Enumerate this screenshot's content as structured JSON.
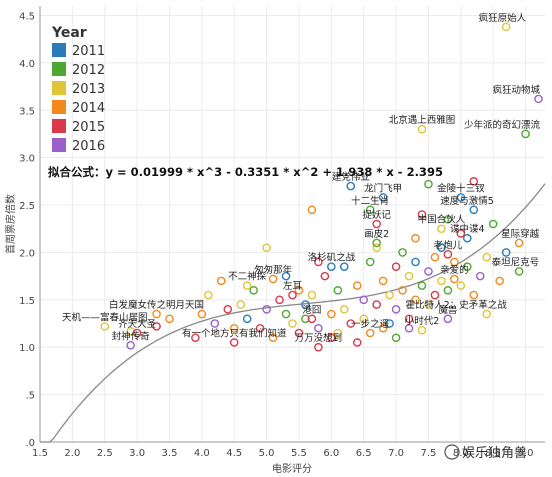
{
  "chart_data": {
    "type": "scatter",
    "xlabel": "电影评分",
    "ylabel": "首周票房倍数",
    "xlim": [
      1.5,
      9.3
    ],
    "ylim": [
      0,
      4.6
    ],
    "x_ticks": [
      "1.5",
      "2.0",
      "2.5",
      "3.0",
      "3.5",
      "4.0",
      "4.5",
      "5.0",
      "5.5",
      "6.0",
      "6.5",
      "7.0",
      "7.5",
      "8.0",
      "8.5",
      "9.0"
    ],
    "y_ticks": [
      ".0",
      ".5",
      "1.0",
      "1.5",
      "2.0",
      "2.5",
      "3.0",
      "3.5",
      "4.0",
      "4.5"
    ],
    "legend": {
      "title": "Year",
      "position": "top-left",
      "items": [
        {
          "label": "2011",
          "color": "#2b7bba"
        },
        {
          "label": "2012",
          "color": "#4ea733"
        },
        {
          "label": "2013",
          "color": "#e0c53a"
        },
        {
          "label": "2014",
          "color": "#f08a1f"
        },
        {
          "label": "2015",
          "color": "#d8394b"
        },
        {
          "label": "2016",
          "color": "#9a5fc8"
        }
      ]
    },
    "formula_text": "拟合公式：y = 0.01999 * x^3 - 0.3351 * x^2 + 1.938 * x - 2.395",
    "fit": {
      "a3": 0.01999,
      "a2": -0.3351,
      "a1": 1.938,
      "a0": -2.395
    },
    "labeled_points": [
      {
        "label": "疯狂原始人",
        "x": 8.7,
        "y": 4.38,
        "year": "2013"
      },
      {
        "label": "疯狂动物城",
        "x": 9.2,
        "y": 3.62,
        "year": "2016"
      },
      {
        "label": "北京遇上西雅图",
        "x": 7.4,
        "y": 3.3,
        "year": "2013"
      },
      {
        "label": "少年派的奇幻漂流",
        "x": 9.0,
        "y": 3.25,
        "year": "2012"
      },
      {
        "label": "建党伟业",
        "x": 6.3,
        "y": 2.7,
        "year": "2011"
      },
      {
        "label": "龙门飞甲",
        "x": 6.8,
        "y": 2.58,
        "year": "2011"
      },
      {
        "label": "金陵十三钗",
        "x": 8.0,
        "y": 2.58,
        "year": "2011"
      },
      {
        "label": "十二生肖",
        "x": 6.6,
        "y": 2.45,
        "year": "2012"
      },
      {
        "label": "速度与激情5",
        "x": 8.2,
        "y": 2.45,
        "year": "2011"
      },
      {
        "label": "捉妖记",
        "x": 6.7,
        "y": 2.3,
        "year": "2015"
      },
      {
        "label": "中国合伙人",
        "x": 7.7,
        "y": 2.25,
        "year": "2013"
      },
      {
        "label": "谍中谍4",
        "x": 8.1,
        "y": 2.15,
        "year": "2011"
      },
      {
        "label": "星际穿越",
        "x": 8.9,
        "y": 2.1,
        "year": "2014"
      },
      {
        "label": "画皮2",
        "x": 6.7,
        "y": 2.1,
        "year": "2012"
      },
      {
        "label": "老炮儿",
        "x": 7.8,
        "y": 1.98,
        "year": "2015"
      },
      {
        "label": "洛杉矶之战",
        "x": 6.0,
        "y": 1.85,
        "year": "2011"
      },
      {
        "label": "泰坦尼克号",
        "x": 8.9,
        "y": 1.8,
        "year": "2012"
      },
      {
        "label": "匆匆那年",
        "x": 5.1,
        "y": 1.72,
        "year": "2014"
      },
      {
        "label": "亲爱的",
        "x": 7.9,
        "y": 1.72,
        "year": "2014"
      },
      {
        "label": "不二神探",
        "x": 4.7,
        "y": 1.65,
        "year": "2013"
      },
      {
        "label": "左耳",
        "x": 5.4,
        "y": 1.55,
        "year": "2015"
      },
      {
        "label": "白发魔女传之明月天国",
        "x": 3.3,
        "y": 1.35,
        "year": "2014"
      },
      {
        "label": "霍比特人2：史矛革之战",
        "x": 8.4,
        "y": 1.35,
        "year": "2013"
      },
      {
        "label": "天机——富春山居图",
        "x": 2.5,
        "y": 1.22,
        "year": "2013"
      },
      {
        "label": "港囧",
        "x": 5.7,
        "y": 1.3,
        "year": "2015"
      },
      {
        "label": "魔兽",
        "x": 7.8,
        "y": 1.3,
        "year": "2016"
      },
      {
        "label": "齐天大圣",
        "x": 3.0,
        "y": 1.15,
        "year": "2015"
      },
      {
        "label": "一步之遥",
        "x": 6.6,
        "y": 1.15,
        "year": "2014"
      },
      {
        "label": "小时代2",
        "x": 7.4,
        "y": 1.18,
        "year": "2013"
      },
      {
        "label": "封神传奇",
        "x": 2.9,
        "y": 1.02,
        "year": "2016"
      },
      {
        "label": "有一个地方只有我们知道",
        "x": 4.5,
        "y": 1.05,
        "year": "2015"
      },
      {
        "label": "万万没想到",
        "x": 5.8,
        "y": 1.0,
        "year": "2015"
      }
    ],
    "points": [
      {
        "x": 2.9,
        "y": 1.17,
        "year": "2013"
      },
      {
        "x": 3.3,
        "y": 1.22,
        "year": "2015"
      },
      {
        "x": 3.5,
        "y": 1.3,
        "year": "2014"
      },
      {
        "x": 3.9,
        "y": 1.1,
        "year": "2015"
      },
      {
        "x": 4.0,
        "y": 1.35,
        "year": "2014"
      },
      {
        "x": 4.1,
        "y": 1.55,
        "year": "2013"
      },
      {
        "x": 4.2,
        "y": 1.25,
        "year": "2016"
      },
      {
        "x": 4.4,
        "y": 1.4,
        "year": "2015"
      },
      {
        "x": 4.5,
        "y": 1.2,
        "year": "2014"
      },
      {
        "x": 4.6,
        "y": 1.45,
        "year": "2013"
      },
      {
        "x": 4.7,
        "y": 1.3,
        "year": "2011"
      },
      {
        "x": 4.8,
        "y": 1.6,
        "year": "2012"
      },
      {
        "x": 4.9,
        "y": 1.2,
        "year": "2015"
      },
      {
        "x": 5.0,
        "y": 2.05,
        "year": "2013"
      },
      {
        "x": 5.0,
        "y": 1.4,
        "year": "2016"
      },
      {
        "x": 5.1,
        "y": 1.1,
        "year": "2014"
      },
      {
        "x": 5.2,
        "y": 1.5,
        "year": "2015"
      },
      {
        "x": 5.3,
        "y": 1.35,
        "year": "2012"
      },
      {
        "x": 5.4,
        "y": 1.25,
        "year": "2013"
      },
      {
        "x": 5.5,
        "y": 1.6,
        "year": "2014"
      },
      {
        "x": 5.5,
        "y": 1.15,
        "year": "2015"
      },
      {
        "x": 5.6,
        "y": 1.45,
        "year": "2011"
      },
      {
        "x": 5.7,
        "y": 2.45,
        "year": "2014"
      },
      {
        "x": 5.7,
        "y": 1.55,
        "year": "2013"
      },
      {
        "x": 5.8,
        "y": 1.2,
        "year": "2016"
      },
      {
        "x": 5.9,
        "y": 1.75,
        "year": "2015"
      },
      {
        "x": 6.0,
        "y": 1.35,
        "year": "2014"
      },
      {
        "x": 6.0,
        "y": 1.1,
        "year": "2015"
      },
      {
        "x": 6.1,
        "y": 1.6,
        "year": "2012"
      },
      {
        "x": 6.2,
        "y": 1.4,
        "year": "2013"
      },
      {
        "x": 6.2,
        "y": 1.85,
        "year": "2011"
      },
      {
        "x": 6.3,
        "y": 1.25,
        "year": "2015"
      },
      {
        "x": 6.4,
        "y": 1.65,
        "year": "2014"
      },
      {
        "x": 6.5,
        "y": 1.5,
        "year": "2016"
      },
      {
        "x": 6.5,
        "y": 1.3,
        "year": "2013"
      },
      {
        "x": 6.6,
        "y": 1.9,
        "year": "2012"
      },
      {
        "x": 6.7,
        "y": 1.45,
        "year": "2015"
      },
      {
        "x": 6.8,
        "y": 1.7,
        "year": "2014"
      },
      {
        "x": 6.9,
        "y": 1.55,
        "year": "2013"
      },
      {
        "x": 6.9,
        "y": 1.25,
        "year": "2011"
      },
      {
        "x": 7.0,
        "y": 1.85,
        "year": "2015"
      },
      {
        "x": 7.0,
        "y": 1.4,
        "year": "2016"
      },
      {
        "x": 7.1,
        "y": 2.0,
        "year": "2012"
      },
      {
        "x": 7.1,
        "y": 1.6,
        "year": "2014"
      },
      {
        "x": 7.2,
        "y": 1.75,
        "year": "2013"
      },
      {
        "x": 7.2,
        "y": 1.3,
        "year": "2015"
      },
      {
        "x": 7.3,
        "y": 1.9,
        "year": "2011"
      },
      {
        "x": 7.3,
        "y": 1.5,
        "year": "2014"
      },
      {
        "x": 7.4,
        "y": 2.4,
        "year": "2015"
      },
      {
        "x": 7.4,
        "y": 1.65,
        "year": "2012"
      },
      {
        "x": 7.5,
        "y": 2.72,
        "year": "2012"
      },
      {
        "x": 7.5,
        "y": 1.8,
        "year": "2016"
      },
      {
        "x": 7.5,
        "y": 1.45,
        "year": "2013"
      },
      {
        "x": 7.6,
        "y": 1.95,
        "year": "2014"
      },
      {
        "x": 7.6,
        "y": 1.55,
        "year": "2015"
      },
      {
        "x": 7.7,
        "y": 2.05,
        "year": "2011"
      },
      {
        "x": 7.7,
        "y": 1.7,
        "year": "2013"
      },
      {
        "x": 7.8,
        "y": 1.6,
        "year": "2012"
      },
      {
        "x": 7.9,
        "y": 1.9,
        "year": "2014"
      },
      {
        "x": 8.0,
        "y": 2.2,
        "year": "2015"
      },
      {
        "x": 8.0,
        "y": 1.65,
        "year": "2013"
      },
      {
        "x": 8.1,
        "y": 1.85,
        "year": "2012"
      },
      {
        "x": 8.2,
        "y": 1.55,
        "year": "2014"
      },
      {
        "x": 8.2,
        "y": 2.75,
        "year": "2015"
      },
      {
        "x": 8.3,
        "y": 1.75,
        "year": "2016"
      },
      {
        "x": 8.4,
        "y": 1.95,
        "year": "2013"
      },
      {
        "x": 8.5,
        "y": 2.3,
        "year": "2012"
      },
      {
        "x": 8.6,
        "y": 1.7,
        "year": "2014"
      },
      {
        "x": 8.7,
        "y": 2.0,
        "year": "2011"
      },
      {
        "x": 5.6,
        "y": 1.3,
        "year": "2012"
      },
      {
        "x": 6.1,
        "y": 1.15,
        "year": "2013"
      },
      {
        "x": 6.4,
        "y": 1.05,
        "year": "2015"
      },
      {
        "x": 6.8,
        "y": 1.2,
        "year": "2014"
      },
      {
        "x": 7.0,
        "y": 1.1,
        "year": "2012"
      },
      {
        "x": 7.2,
        "y": 1.2,
        "year": "2016"
      },
      {
        "x": 5.3,
        "y": 1.75,
        "year": "2011"
      },
      {
        "x": 5.8,
        "y": 1.9,
        "year": "2015"
      },
      {
        "x": 6.7,
        "y": 2.05,
        "year": "2013"
      },
      {
        "x": 7.3,
        "y": 2.15,
        "year": "2014"
      },
      {
        "x": 7.8,
        "y": 2.35,
        "year": "2012"
      },
      {
        "x": 4.3,
        "y": 1.7,
        "year": "2014"
      }
    ]
  },
  "watermark": "娱乐独角兽"
}
